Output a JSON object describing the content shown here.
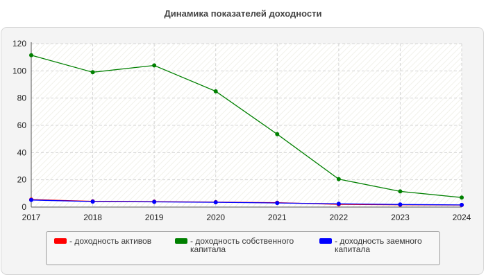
{
  "chart_data": {
    "type": "line",
    "title": "Динамика показателей доходности",
    "xlabel": "",
    "ylabel": "",
    "x": [
      "2017",
      "2018",
      "2019",
      "2020",
      "2021",
      "2022",
      "2023",
      "2024"
    ],
    "ylim": [
      0,
      120
    ],
    "yticks": [
      "0",
      "20",
      "40",
      "60",
      "80",
      "100",
      "120"
    ],
    "grid": true,
    "legend_position": "bottom",
    "series": [
      {
        "name": "- доходность активов",
        "color": "#ff0000",
        "values": [
          5.5,
          4.2,
          4.0,
          3.6,
          3.2,
          2.0,
          1.7,
          1.5
        ]
      },
      {
        "name": "- доходность собственного капитала",
        "color": "#008000",
        "values": [
          111.5,
          99,
          104,
          85,
          53.5,
          20.5,
          11.5,
          7
        ]
      },
      {
        "name": "- доходность заемного капитала",
        "color": "#0000ff",
        "values": [
          5.2,
          4.0,
          3.8,
          3.5,
          3.0,
          2.4,
          1.9,
          1.6
        ]
      }
    ]
  }
}
